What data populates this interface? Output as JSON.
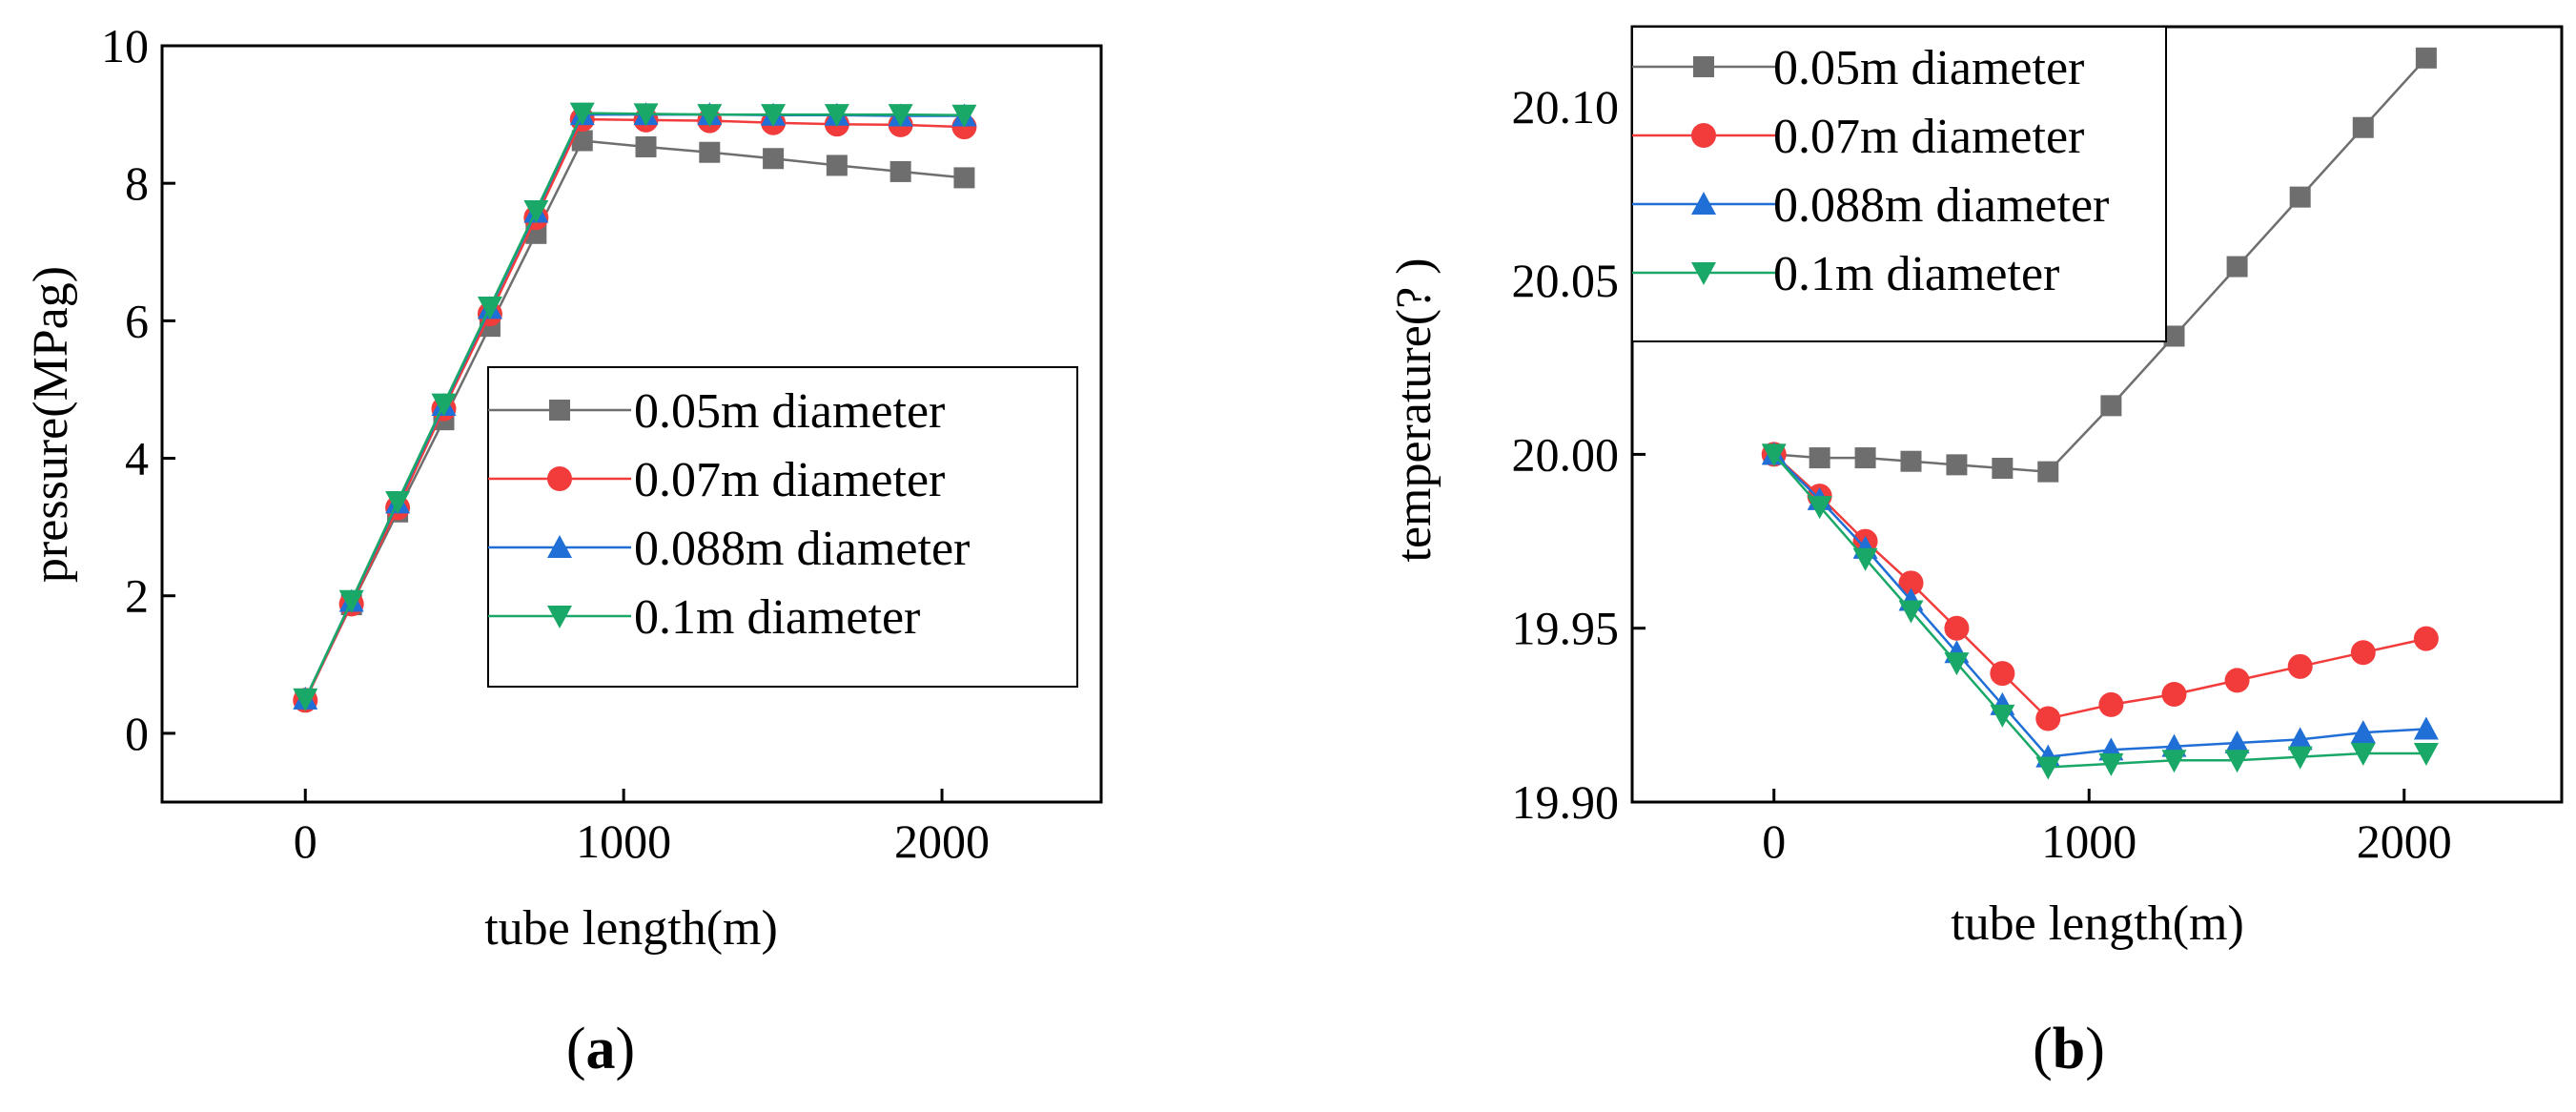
{
  "chart_data": [
    {
      "type": "line",
      "caption_paren_open": "(",
      "caption_letter": "a",
      "caption_paren_close": ")",
      "xlabel": "tube length(m)",
      "ylabel": "pressure(MPag)",
      "xlim": [
        -450,
        2500
      ],
      "ylim": [
        -1,
        10
      ],
      "xticks": [
        0,
        1000,
        2000
      ],
      "xtick_labels": [
        "0",
        "1000",
        "2000"
      ],
      "yticks": [
        0,
        2,
        4,
        6,
        8,
        10
      ],
      "ytick_labels": [
        "0",
        "2",
        "4",
        "6",
        "8",
        "10"
      ],
      "grid": false,
      "legend_position": "center-right",
      "x": [
        0,
        145,
        290,
        435,
        580,
        725,
        870,
        1070,
        1270,
        1470,
        1670,
        1870,
        2070
      ],
      "series": [
        {
          "name": "0.05m diameter",
          "color": "#6e6e6e",
          "marker": "square",
          "values": [
            0.5,
            1.87,
            3.22,
            4.56,
            5.92,
            7.27,
            8.62,
            8.53,
            8.45,
            8.36,
            8.26,
            8.17,
            8.08
          ]
        },
        {
          "name": "0.07m diameter",
          "color": "#f23c3c",
          "marker": "circle",
          "values": [
            0.48,
            1.88,
            3.28,
            4.72,
            6.1,
            7.5,
            8.93,
            8.92,
            8.91,
            8.88,
            8.86,
            8.85,
            8.82
          ]
        },
        {
          "name": "0.088m diameter",
          "color": "#1f6fd6",
          "marker": "triangle-up",
          "values": [
            0.5,
            1.92,
            3.35,
            4.77,
            6.18,
            7.58,
            9.0,
            9.0,
            9.0,
            8.99,
            8.99,
            8.98,
            8.98
          ]
        },
        {
          "name": "0.1m diameter",
          "color": "#1aa868",
          "marker": "triangle-down",
          "values": [
            0.5,
            1.93,
            3.37,
            4.79,
            6.2,
            7.6,
            9.02,
            9.01,
            9.0,
            9.0,
            9.0,
            9.0,
            8.99
          ]
        }
      ]
    },
    {
      "type": "line",
      "caption_paren_open": "(",
      "caption_letter": "b",
      "caption_paren_close": ")",
      "xlabel": "tube length(m)",
      "ylabel": "temperature(?  )",
      "xlim": [
        -450,
        2500
      ],
      "ylim": [
        19.9,
        20.123
      ],
      "xticks": [
        0,
        1000,
        2000
      ],
      "xtick_labels": [
        "0",
        "1000",
        "2000"
      ],
      "yticks": [
        19.9,
        19.95,
        20.0,
        20.05,
        20.1
      ],
      "ytick_labels": [
        "19.90",
        "19.95",
        "20.00",
        "20.05",
        "20.10"
      ],
      "grid": false,
      "legend_position": "top-left",
      "x": [
        0,
        145,
        290,
        435,
        580,
        725,
        870,
        1070,
        1270,
        1470,
        1670,
        1870,
        2070
      ],
      "series": [
        {
          "name": "0.05m diameter",
          "color": "#6e6e6e",
          "marker": "square",
          "values": [
            20.0,
            19.999,
            19.999,
            19.998,
            19.997,
            19.996,
            19.995,
            20.014,
            20.034,
            20.054,
            20.074,
            20.094,
            20.114
          ]
        },
        {
          "name": "0.07m diameter",
          "color": "#f23c3c",
          "marker": "circle",
          "values": [
            20.0,
            19.988,
            19.975,
            19.963,
            19.95,
            19.937,
            19.924,
            19.928,
            19.931,
            19.935,
            19.939,
            19.943,
            19.947
          ]
        },
        {
          "name": "0.088m diameter",
          "color": "#1f6fd6",
          "marker": "triangle-up",
          "values": [
            20.0,
            19.987,
            19.973,
            19.958,
            19.943,
            19.928,
            19.913,
            19.915,
            19.916,
            19.917,
            19.918,
            19.92,
            19.921
          ]
        },
        {
          "name": "0.1m diameter",
          "color": "#1aa868",
          "marker": "triangle-down",
          "values": [
            20.0,
            19.985,
            19.97,
            19.955,
            19.94,
            19.925,
            19.91,
            19.911,
            19.912,
            19.912,
            19.913,
            19.914,
            19.914
          ]
        }
      ]
    }
  ]
}
